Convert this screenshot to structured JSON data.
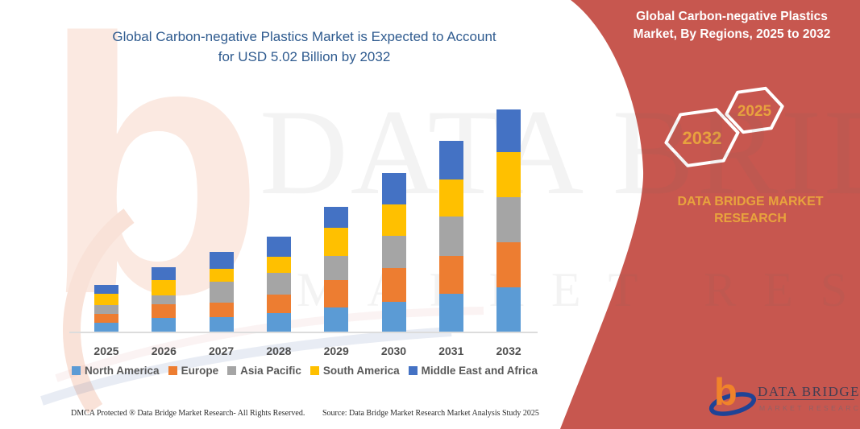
{
  "title": {
    "line1": "Global Carbon-negative Plastics Market is Expected to Account",
    "line2": "for USD 5.02 Billion by 2032"
  },
  "side_panel": {
    "panel_color": "#C7574F",
    "accent_color": "#E8A23E",
    "title_line1": "Global Carbon-negative Plastics",
    "title_line2": "Market, By Regions, 2025 to 2032",
    "hexagons": [
      {
        "label": "2032"
      },
      {
        "label": "2025"
      }
    ],
    "brand_line1": "DATA BRIDGE MARKET",
    "brand_line2": "RESEARCH"
  },
  "logo": {
    "name_text": "DATA BRIDGE",
    "sub_text": "MARKET RESEARCH",
    "b_color": "#F0832A",
    "swoosh_color": "#1F4396",
    "text_color": "#413D52"
  },
  "watermark": {
    "line1": "DATA BRIDGE",
    "line2": "MARKET RESEARCH"
  },
  "footer": {
    "dmca": "DMCA Protected ® Data Bridge Market Research-  All Rights Reserved.",
    "source": "Source: Data Bridge Market Research  Market Analysis Study 2025"
  },
  "chart_data": {
    "type": "bar",
    "stacked": true,
    "title": "Global Carbon-negative Plastics Market is Expected to Account for USD 5.02 Billion by 2032",
    "units": "USD Billion",
    "categories": [
      "2025",
      "2026",
      "2027",
      "2028",
      "2029",
      "2030",
      "2031",
      "2032"
    ],
    "series": [
      {
        "name": "North America",
        "color": "#5B9BD5",
        "values": [
          0.2,
          0.31,
          0.33,
          0.42,
          0.54,
          0.67,
          0.85,
          1.0
        ]
      },
      {
        "name": "Europe",
        "color": "#ED7D31",
        "values": [
          0.2,
          0.31,
          0.33,
          0.42,
          0.63,
          0.76,
          0.85,
          1.02
        ]
      },
      {
        "name": "Asia Pacific",
        "color": "#A5A5A5",
        "values": [
          0.2,
          0.2,
          0.47,
          0.49,
          0.54,
          0.74,
          0.89,
          1.02
        ]
      },
      {
        "name": "South America",
        "color": "#FFC000",
        "values": [
          0.25,
          0.34,
          0.29,
          0.36,
          0.63,
          0.71,
          0.85,
          1.02
        ]
      },
      {
        "name": "Middle East and Africa",
        "color": "#4472C4",
        "values": [
          0.2,
          0.29,
          0.38,
          0.45,
          0.49,
          0.71,
          0.87,
          0.96
        ]
      }
    ],
    "totals_estimated": [
      1.05,
      1.45,
      1.8,
      2.14,
      2.83,
      3.59,
      4.31,
      5.02
    ],
    "highlight_value": "USD 5.02 Billion by 2032",
    "xlabel": "",
    "ylabel": "",
    "y_axis_visible": false,
    "grid": false,
    "legend_position": "bottom"
  }
}
